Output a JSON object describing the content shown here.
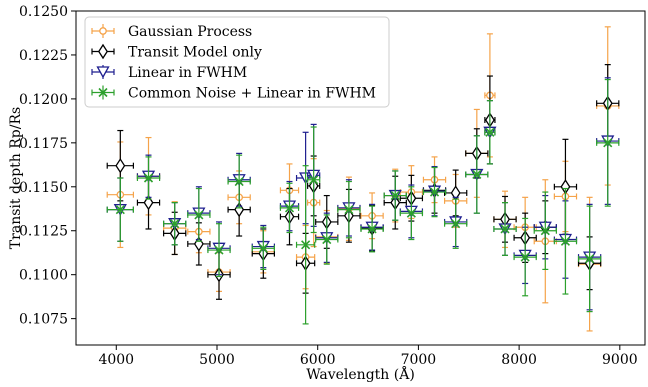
{
  "chart_data": {
    "type": "scatter",
    "xlabel": "Wavelength (Å)",
    "ylabel": "Transit depth Rp/Rs",
    "xlim": [
      3600,
      9250
    ],
    "ylim": [
      0.106,
      0.125
    ],
    "x_ticks": [
      4000,
      5000,
      6000,
      7000,
      8000,
      9000
    ],
    "y_ticks": [
      0.1075,
      0.11,
      0.1125,
      0.115,
      0.1175,
      0.12,
      0.1225,
      0.125
    ],
    "y_tick_labels": [
      "0.1075",
      "0.1100",
      "0.1125",
      "0.1150",
      "0.1175",
      "0.1200",
      "0.1225",
      "0.1250"
    ],
    "x_tick_labels": [
      "4000",
      "5000",
      "6000",
      "7000",
      "8000",
      "9000"
    ],
    "legend_placement": "top-left",
    "grid": false,
    "series": [
      {
        "name": "Gaussian Process",
        "color": "#f5a34a",
        "marker": "circle",
        "points": [
          {
            "x": 4040,
            "xerr": 130,
            "y": 0.11455,
            "yerr": 0.003
          },
          {
            "x": 4320,
            "xerr": 110,
            "y": 0.1156,
            "yerr": 0.0022
          },
          {
            "x": 4580,
            "xerr": 110,
            "y": 0.11265,
            "yerr": 0.0015
          },
          {
            "x": 4820,
            "xerr": 110,
            "y": 0.11245,
            "yerr": 0.0012
          },
          {
            "x": 5020,
            "xerr": 110,
            "y": 0.11015,
            "yerr": 0.0011
          },
          {
            "x": 5220,
            "xerr": 110,
            "y": 0.1144,
            "yerr": 0.0015
          },
          {
            "x": 5460,
            "xerr": 110,
            "y": 0.1113,
            "yerr": 0.0012
          },
          {
            "x": 5720,
            "xerr": 90,
            "y": 0.1148,
            "yerr": 0.0015
          },
          {
            "x": 5880,
            "xerr": 90,
            "y": 0.111,
            "yerr": 0.0018
          },
          {
            "x": 5960,
            "xerr": 60,
            "y": 0.1141,
            "yerr": 0.0025
          },
          {
            "x": 6090,
            "xerr": 110,
            "y": 0.11215,
            "yerr": 0.0015
          },
          {
            "x": 6310,
            "xerr": 110,
            "y": 0.11375,
            "yerr": 0.0018
          },
          {
            "x": 6540,
            "xerr": 110,
            "y": 0.11335,
            "yerr": 0.0013
          },
          {
            "x": 6770,
            "xerr": 110,
            "y": 0.1145,
            "yerr": 0.0015
          },
          {
            "x": 6930,
            "xerr": 110,
            "y": 0.1147,
            "yerr": 0.0015
          },
          {
            "x": 7160,
            "xerr": 110,
            "y": 0.1154,
            "yerr": 0.0013
          },
          {
            "x": 7370,
            "xerr": 110,
            "y": 0.1142,
            "yerr": 0.0015
          },
          {
            "x": 7580,
            "xerr": 110,
            "y": 0.1169,
            "yerr": 0.0025
          },
          {
            "x": 7710,
            "xerr": 50,
            "y": 0.1202,
            "yerr": 0.0035
          },
          {
            "x": 7860,
            "xerr": 110,
            "y": 0.11315,
            "yerr": 0.0016
          },
          {
            "x": 8060,
            "xerr": 110,
            "y": 0.1127,
            "yerr": 0.0017
          },
          {
            "x": 8260,
            "xerr": 110,
            "y": 0.1119,
            "yerr": 0.0035
          },
          {
            "x": 8460,
            "xerr": 110,
            "y": 0.11445,
            "yerr": 0.002
          },
          {
            "x": 8700,
            "xerr": 110,
            "y": 0.1106,
            "yerr": 0.0038
          },
          {
            "x": 8880,
            "xerr": 110,
            "y": 0.1196,
            "yerr": 0.0045
          }
        ]
      },
      {
        "name": "Transit Model only",
        "color": "#000000",
        "marker": "diamond",
        "points": [
          {
            "x": 4040,
            "xerr": 130,
            "y": 0.1162,
            "yerr": 0.002
          },
          {
            "x": 4320,
            "xerr": 110,
            "y": 0.1141,
            "yerr": 0.0015
          },
          {
            "x": 4580,
            "xerr": 110,
            "y": 0.11235,
            "yerr": 0.0012
          },
          {
            "x": 4820,
            "xerr": 110,
            "y": 0.11175,
            "yerr": 0.0012
          },
          {
            "x": 5020,
            "xerr": 110,
            "y": 0.11,
            "yerr": 0.0014
          },
          {
            "x": 5220,
            "xerr": 110,
            "y": 0.1137,
            "yerr": 0.0015
          },
          {
            "x": 5460,
            "xerr": 110,
            "y": 0.1112,
            "yerr": 0.0014
          },
          {
            "x": 5720,
            "xerr": 90,
            "y": 0.1133,
            "yerr": 0.0016
          },
          {
            "x": 5880,
            "xerr": 90,
            "y": 0.11065,
            "yerr": 0.0017
          },
          {
            "x": 5960,
            "xerr": 60,
            "y": 0.11505,
            "yerr": 0.0017
          },
          {
            "x": 6090,
            "xerr": 110,
            "y": 0.113,
            "yerr": 0.0015
          },
          {
            "x": 6310,
            "xerr": 110,
            "y": 0.11335,
            "yerr": 0.0015
          },
          {
            "x": 6540,
            "xerr": 110,
            "y": 0.11265,
            "yerr": 0.0013
          },
          {
            "x": 6770,
            "xerr": 110,
            "y": 0.1141,
            "yerr": 0.0015
          },
          {
            "x": 6930,
            "xerr": 110,
            "y": 0.11435,
            "yerr": 0.0013
          },
          {
            "x": 7160,
            "xerr": 110,
            "y": 0.1148,
            "yerr": 0.0013
          },
          {
            "x": 7370,
            "xerr": 110,
            "y": 0.11465,
            "yerr": 0.0013
          },
          {
            "x": 7580,
            "xerr": 110,
            "y": 0.1169,
            "yerr": 0.0014
          },
          {
            "x": 7710,
            "xerr": 50,
            "y": 0.1188,
            "yerr": 0.0025
          },
          {
            "x": 7860,
            "xerr": 110,
            "y": 0.11315,
            "yerr": 0.0013
          },
          {
            "x": 8060,
            "xerr": 110,
            "y": 0.1121,
            "yerr": 0.0014
          },
          {
            "x": 8260,
            "xerr": 110,
            "y": 0.1127,
            "yerr": 0.0015
          },
          {
            "x": 8460,
            "xerr": 110,
            "y": 0.115,
            "yerr": 0.0027
          },
          {
            "x": 8700,
            "xerr": 110,
            "y": 0.11065,
            "yerr": 0.0015
          },
          {
            "x": 8880,
            "xerr": 110,
            "y": 0.11975,
            "yerr": 0.0022
          }
        ]
      },
      {
        "name": "Linear in FWHM",
        "color": "#1f1f8f",
        "marker": "triangle-down",
        "points": [
          {
            "x": 4040,
            "xerr": 130,
            "y": 0.1137,
            "yerr": 0.0018
          },
          {
            "x": 4320,
            "xerr": 110,
            "y": 0.1156,
            "yerr": 0.0012
          },
          {
            "x": 4580,
            "xerr": 110,
            "y": 0.1129,
            "yerr": 0.0012
          },
          {
            "x": 4820,
            "xerr": 110,
            "y": 0.1135,
            "yerr": 0.0015
          },
          {
            "x": 5020,
            "xerr": 110,
            "y": 0.1115,
            "yerr": 0.0015
          },
          {
            "x": 5220,
            "xerr": 110,
            "y": 0.1154,
            "yerr": 0.0015
          },
          {
            "x": 5460,
            "xerr": 110,
            "y": 0.1116,
            "yerr": 0.0012
          },
          {
            "x": 5720,
            "xerr": 90,
            "y": 0.1139,
            "yerr": 0.0014
          },
          {
            "x": 5880,
            "xerr": 90,
            "y": 0.1155,
            "yerr": 0.0026
          },
          {
            "x": 5960,
            "xerr": 60,
            "y": 0.11565,
            "yerr": 0.0029
          },
          {
            "x": 6090,
            "xerr": 110,
            "y": 0.1121,
            "yerr": 0.0014
          },
          {
            "x": 6310,
            "xerr": 110,
            "y": 0.1138,
            "yerr": 0.0016
          },
          {
            "x": 6540,
            "xerr": 110,
            "y": 0.1127,
            "yerr": 0.0013
          },
          {
            "x": 6770,
            "xerr": 110,
            "y": 0.1145,
            "yerr": 0.0014
          },
          {
            "x": 6930,
            "xerr": 110,
            "y": 0.1136,
            "yerr": 0.0015
          },
          {
            "x": 7160,
            "xerr": 110,
            "y": 0.11475,
            "yerr": 0.0014
          },
          {
            "x": 7370,
            "xerr": 110,
            "y": 0.113,
            "yerr": 0.0014
          },
          {
            "x": 7580,
            "xerr": 110,
            "y": 0.1157,
            "yerr": 0.0022
          },
          {
            "x": 7710,
            "xerr": 50,
            "y": 0.1181,
            "yerr": 0.0018
          },
          {
            "x": 7860,
            "xerr": 110,
            "y": 0.1126,
            "yerr": 0.0015
          },
          {
            "x": 8060,
            "xerr": 110,
            "y": 0.1111,
            "yerr": 0.0016
          },
          {
            "x": 8260,
            "xerr": 110,
            "y": 0.1127,
            "yerr": 0.0018
          },
          {
            "x": 8460,
            "xerr": 110,
            "y": 0.112,
            "yerr": 0.0022
          },
          {
            "x": 8700,
            "xerr": 110,
            "y": 0.111,
            "yerr": 0.003
          },
          {
            "x": 8880,
            "xerr": 110,
            "y": 0.1176,
            "yerr": 0.0036
          }
        ]
      },
      {
        "name": "Common Noise + Linear in FWHM",
        "color": "#2ca02c",
        "marker": "x",
        "points": [
          {
            "x": 4040,
            "xerr": 130,
            "y": 0.1137,
            "yerr": 0.0018
          },
          {
            "x": 4320,
            "xerr": 110,
            "y": 0.1155,
            "yerr": 0.0012
          },
          {
            "x": 4580,
            "xerr": 110,
            "y": 0.1129,
            "yerr": 0.0012
          },
          {
            "x": 4820,
            "xerr": 110,
            "y": 0.1134,
            "yerr": 0.0015
          },
          {
            "x": 5020,
            "xerr": 110,
            "y": 0.1114,
            "yerr": 0.0015
          },
          {
            "x": 5220,
            "xerr": 110,
            "y": 0.1153,
            "yerr": 0.0015
          },
          {
            "x": 5460,
            "xerr": 110,
            "y": 0.1115,
            "yerr": 0.0012
          },
          {
            "x": 5720,
            "xerr": 90,
            "y": 0.1138,
            "yerr": 0.0014
          },
          {
            "x": 5880,
            "xerr": 90,
            "y": 0.1117,
            "yerr": 0.0045
          },
          {
            "x": 5960,
            "xerr": 60,
            "y": 0.1154,
            "yerr": 0.003
          },
          {
            "x": 6090,
            "xerr": 110,
            "y": 0.112,
            "yerr": 0.0014
          },
          {
            "x": 6310,
            "xerr": 110,
            "y": 0.1137,
            "yerr": 0.0016
          },
          {
            "x": 6540,
            "xerr": 110,
            "y": 0.1126,
            "yerr": 0.0013
          },
          {
            "x": 6770,
            "xerr": 110,
            "y": 0.1145,
            "yerr": 0.0014
          },
          {
            "x": 6930,
            "xerr": 110,
            "y": 0.1135,
            "yerr": 0.0015
          },
          {
            "x": 7160,
            "xerr": 110,
            "y": 0.1147,
            "yerr": 0.0014
          },
          {
            "x": 7370,
            "xerr": 110,
            "y": 0.1129,
            "yerr": 0.0014
          },
          {
            "x": 7580,
            "xerr": 110,
            "y": 0.1157,
            "yerr": 0.0022
          },
          {
            "x": 7710,
            "xerr": 50,
            "y": 0.1181,
            "yerr": 0.0018
          },
          {
            "x": 7860,
            "xerr": 110,
            "y": 0.1126,
            "yerr": 0.0015
          },
          {
            "x": 8060,
            "xerr": 110,
            "y": 0.111,
            "yerr": 0.0022
          },
          {
            "x": 8260,
            "xerr": 110,
            "y": 0.1125,
            "yerr": 0.0022
          },
          {
            "x": 8460,
            "xerr": 110,
            "y": 0.1119,
            "yerr": 0.003
          },
          {
            "x": 8700,
            "xerr": 110,
            "y": 0.1109,
            "yerr": 0.003
          },
          {
            "x": 8880,
            "xerr": 110,
            "y": 0.1175,
            "yerr": 0.0036
          }
        ]
      }
    ]
  }
}
